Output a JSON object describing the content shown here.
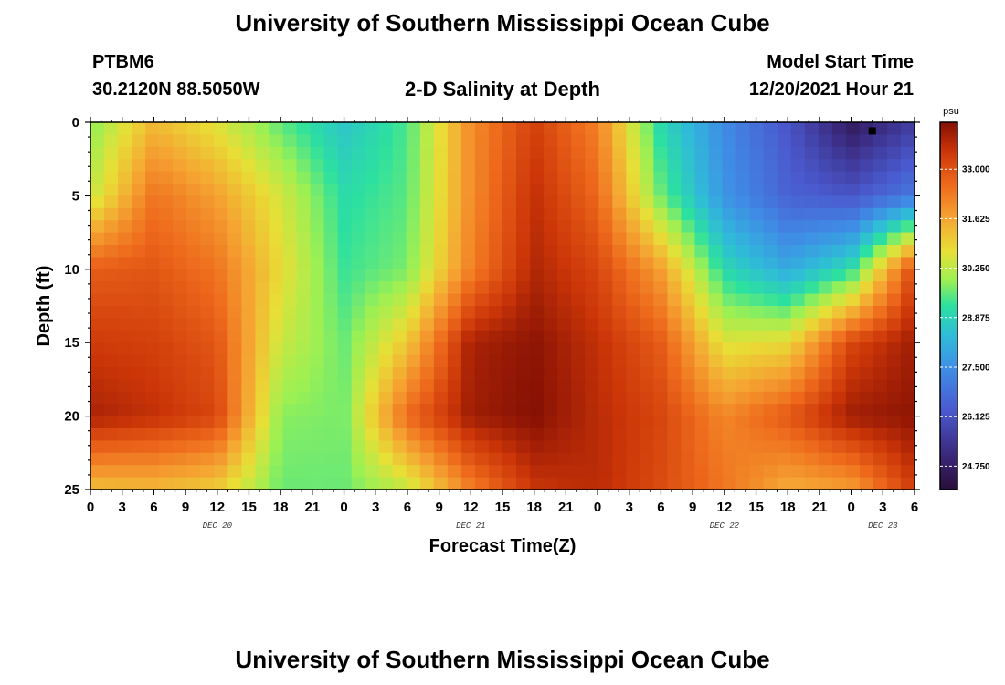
{
  "header": {
    "title": "University of Southern Mississippi Ocean Cube",
    "station": "PTBM6",
    "coords": "30.2120N  88.5050W",
    "subtitle": "2-D Salinity at Depth",
    "start_label": "Model Start Time",
    "start_value": "12/20/2021 Hour 21"
  },
  "footer": {
    "title": "University of Southern Mississippi Ocean Cube"
  },
  "chart_data": {
    "type": "heatmap",
    "title": "2-D Salinity at Depth",
    "xlabel": "Forecast Time(Z)",
    "ylabel": "Depth (ft)",
    "x_unit": "hours from DEC 20 00Z",
    "xlim": [
      0,
      78
    ],
    "ylim": [
      0,
      25
    ],
    "y_inverted": true,
    "x_tick_labels": [
      "0",
      "3",
      "6",
      "9",
      "12",
      "15",
      "18",
      "21",
      "0",
      "3",
      "6",
      "9",
      "12",
      "15",
      "18",
      "21",
      "0",
      "3",
      "6",
      "9",
      "12",
      "15",
      "18",
      "21",
      "0",
      "3",
      "6"
    ],
    "y_ticks": [
      0,
      5,
      10,
      15,
      20,
      25
    ],
    "day_labels": [
      {
        "label": "DEC 20",
        "hour": 12
      },
      {
        "label": "DEC 21",
        "hour": 36
      },
      {
        "label": "DEC 22",
        "hour": 60
      },
      {
        "label": "DEC 23",
        "hour": 75
      }
    ],
    "colorbar": {
      "unit": "psu",
      "min": 24.1,
      "max": 34.3,
      "ticks": [
        "33.000",
        "31.625",
        "30.250",
        "28.875",
        "27.500",
        "26.125",
        "24.750"
      ],
      "tick_values": [
        33.0,
        31.625,
        30.25,
        28.875,
        27.5,
        26.125,
        24.75
      ]
    },
    "grid_hours": [
      0,
      6,
      12,
      18,
      24,
      30,
      36,
      42,
      48,
      54,
      60,
      66,
      72,
      78
    ],
    "grid_depths": [
      0,
      5,
      10,
      15,
      20,
      25
    ],
    "salinity_psu": [
      [
        29.8,
        31.3,
        30.6,
        29.5,
        28.6,
        29.4,
        32.0,
        33.3,
        32.2,
        29.0,
        27.4,
        26.2,
        24.6,
        25.6
      ],
      [
        30.3,
        32.4,
        31.7,
        30.5,
        29.1,
        29.5,
        32.0,
        33.6,
        32.6,
        29.6,
        27.6,
        26.5,
        26.2,
        27.0
      ],
      [
        32.8,
        32.9,
        32.4,
        30.8,
        29.3,
        29.7,
        32.2,
        33.8,
        33.2,
        31.7,
        29.0,
        28.0,
        29.1,
        33.2
      ],
      [
        33.4,
        33.3,
        32.9,
        30.4,
        29.6,
        31.1,
        33.9,
        34.2,
        33.6,
        32.8,
        30.6,
        30.8,
        33.2,
        34.0
      ],
      [
        33.9,
        33.6,
        33.2,
        29.8,
        29.7,
        32.6,
        34.0,
        34.3,
        33.7,
        33.2,
        32.1,
        32.9,
        34.0,
        34.2
      ],
      [
        31.2,
        31.3,
        31.0,
        29.6,
        29.6,
        30.3,
        32.2,
        33.5,
        33.7,
        33.1,
        32.4,
        31.5,
        31.7,
        33.4
      ]
    ],
    "marker": {
      "hour": 74,
      "depth_ft": 0.4
    }
  }
}
